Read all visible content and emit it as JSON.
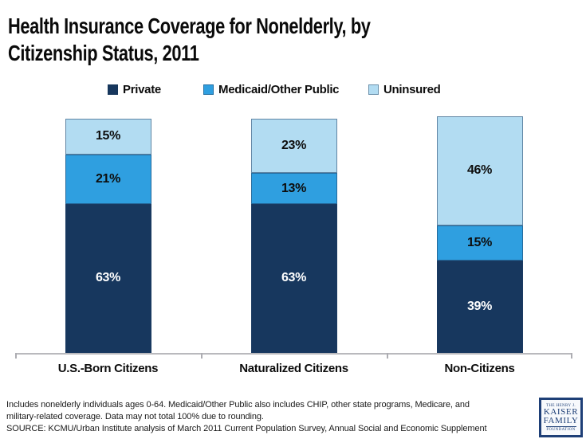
{
  "header": {
    "title_lines": [
      "Health Insurance Coverage for Nonelderly, by",
      "Citizenship Status, 2011"
    ]
  },
  "chart_data": {
    "type": "bar",
    "stacked": true,
    "title": "Health Insurance Coverage for Nonelderly, by Citizenship Status, 2011",
    "categories": [
      "U.S.-Born Citizens",
      "Naturalized Citizens",
      "Non-Citizens"
    ],
    "series": [
      {
        "name": "Private",
        "values": [
          63,
          63,
          39
        ],
        "color": "#17375e",
        "label_color": "#ffffff"
      },
      {
        "name": "Medicaid/Other Public",
        "values": [
          21,
          13,
          15
        ],
        "color": "#2f9fe0",
        "label_color": "#0d0d0d"
      },
      {
        "name": "Uninsured",
        "values": [
          15,
          23,
          46
        ],
        "color": "#b2dcf2",
        "label_color": "#0d0d0d"
      }
    ],
    "value_suffix": "%",
    "ylim": [
      0,
      100
    ],
    "grid": false,
    "legend_position": "top",
    "xlabel": "",
    "ylabel": ""
  },
  "footer": {
    "lines": [
      "Includes nonelderly individuals ages 0-64. Medicaid/Other Public also includes CHIP, other state programs, Medicare, and",
      "military-related coverage. Data may not total 100% due to rounding.",
      "SOURCE: KCMU/Urban Institute analysis of March 2011 Current Population Survey, Annual Social and Economic Supplement"
    ]
  },
  "logo": {
    "top": "THE HENRY J.",
    "line1": "KAISER",
    "line2": "FAMILY",
    "bottom": "FOUNDATION"
  },
  "colors": {
    "private": "#17375e",
    "medicaid_other_public": "#2f9fe0",
    "uninsured": "#b2dcf2",
    "axis": "#b9b9bd",
    "logo_navy": "#1e3f77"
  }
}
